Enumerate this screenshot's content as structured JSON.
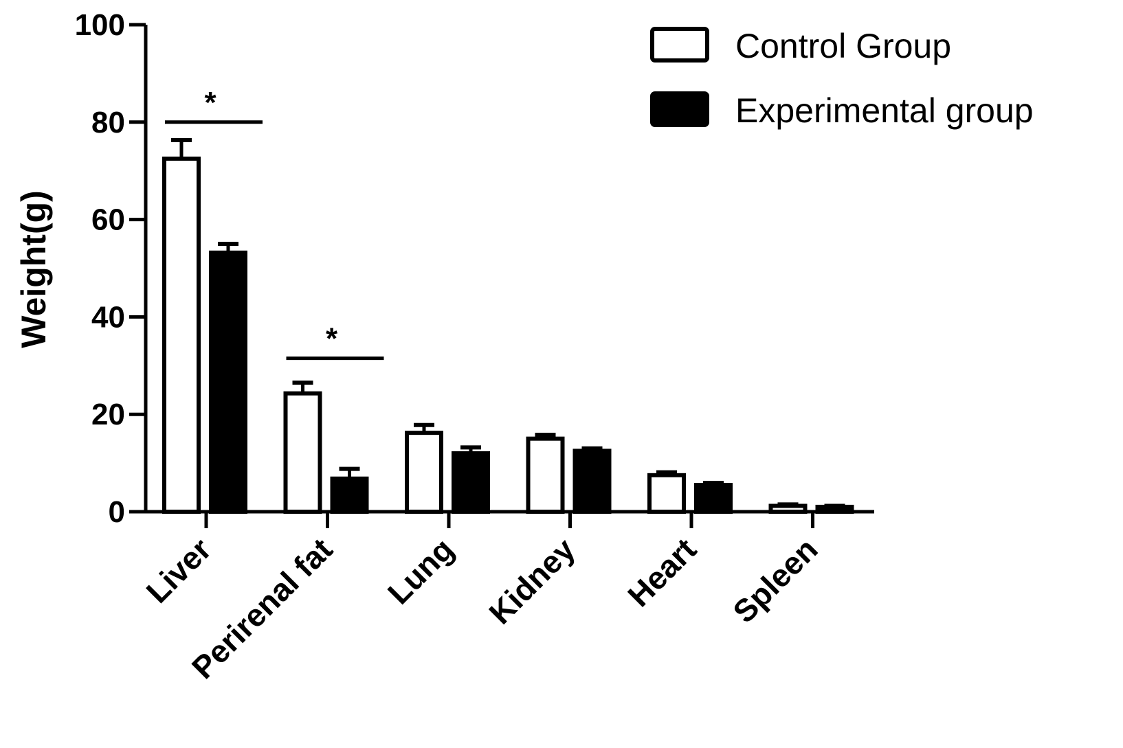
{
  "chart_data": {
    "type": "bar",
    "title": "",
    "xlabel": "",
    "ylabel": "Weight(g)",
    "ylim": [
      0,
      100
    ],
    "yticks": [
      0,
      20,
      40,
      60,
      80,
      100
    ],
    "grid": false,
    "legend_position": "top-right",
    "categories": [
      "Liver",
      "Perirenal fat",
      "Lung",
      "Kidney",
      "Heart",
      "Spleen"
    ],
    "series": [
      {
        "name": "Control Group",
        "fill": "#ffffff",
        "stroke": "#000000",
        "values": [
          72.5,
          24.3,
          16.2,
          15.0,
          7.5,
          1.2
        ],
        "errors": [
          3.8,
          2.2,
          1.6,
          0.8,
          0.6,
          0.3
        ]
      },
      {
        "name": "Experimental group",
        "fill": "#000000",
        "stroke": "#000000",
        "values": [
          53.2,
          6.8,
          12.0,
          12.5,
          5.5,
          1.0
        ],
        "errors": [
          1.8,
          2.0,
          1.2,
          0.5,
          0.4,
          0.2
        ]
      }
    ],
    "significance": [
      {
        "category": "Liver",
        "label": "*",
        "y": 80
      },
      {
        "category": "Perirenal fat",
        "label": "*",
        "y": 31.5
      }
    ]
  }
}
